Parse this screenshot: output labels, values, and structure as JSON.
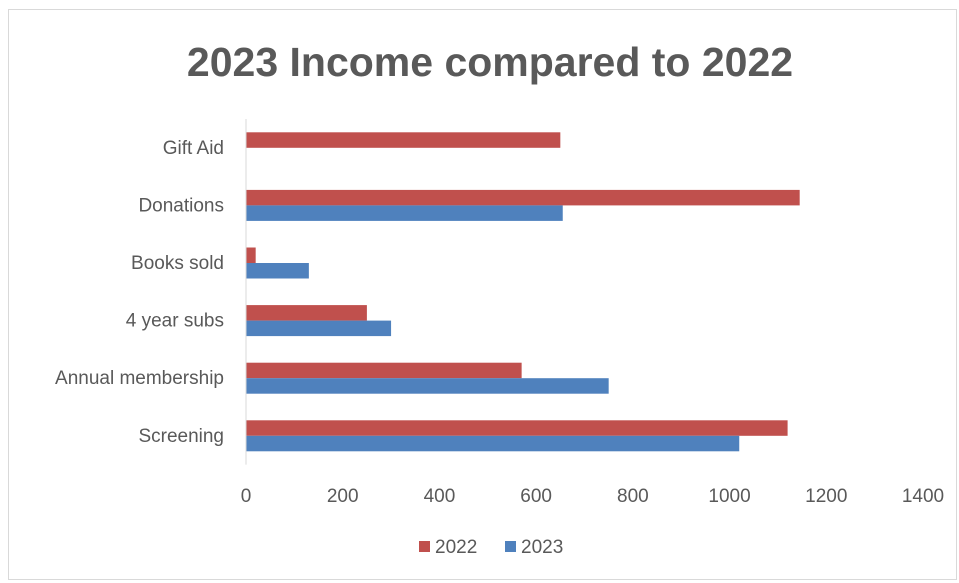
{
  "chart_data": {
    "type": "bar",
    "orientation": "horizontal",
    "title": "2023 Income compared to 2022",
    "xlabel": "",
    "ylabel": "",
    "categories": [
      "Screening",
      "Annual membership",
      "4 year subs",
      "Books sold",
      "Donations",
      "Gift Aid"
    ],
    "series": [
      {
        "name": "2022",
        "color": "#c0504d",
        "values": [
          1120,
          570,
          250,
          20,
          1145,
          650
        ]
      },
      {
        "name": "2023",
        "color": "#4f81bd",
        "values": [
          1020,
          750,
          300,
          130,
          655,
          0
        ]
      }
    ],
    "xlim": [
      0,
      1400
    ],
    "xticks": [
      0,
      200,
      400,
      600,
      800,
      1000,
      1200,
      1400
    ],
    "grid": false,
    "legend_position": "bottom"
  }
}
